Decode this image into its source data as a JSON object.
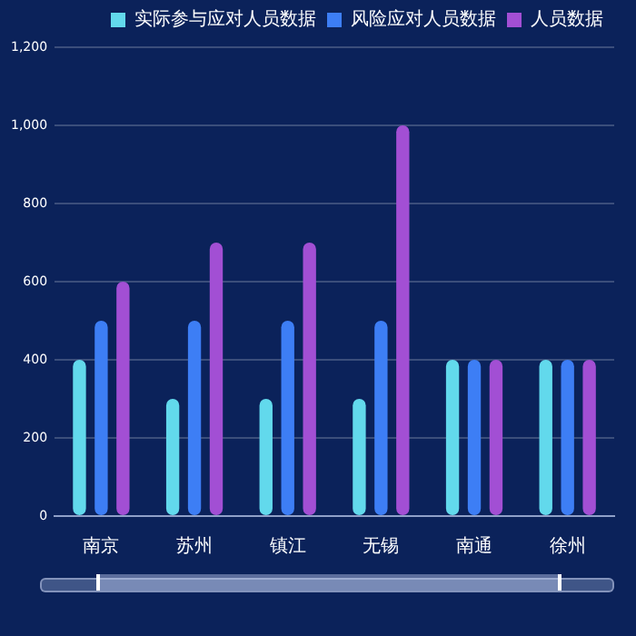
{
  "chart_data": {
    "type": "bar",
    "categories": [
      "南京",
      "苏州",
      "镇江",
      "无锡",
      "南通",
      "徐州"
    ],
    "series": [
      {
        "name": "实际参与应对人员数据",
        "color": "#62d9ec",
        "values": [
          400,
          300,
          300,
          300,
          400,
          400
        ]
      },
      {
        "name": "风险应对人员数据",
        "color": "#3d7ef5",
        "values": [
          500,
          500,
          500,
          500,
          400,
          400
        ]
      },
      {
        "name": "人员数据",
        "color": "#a24fd4",
        "values": [
          600,
          700,
          700,
          1000,
          400,
          400
        ]
      }
    ],
    "ylim": [
      0,
      1200
    ],
    "yticks": [
      0,
      {
        "value": 200,
        "label": "200"
      },
      {
        "value": 400,
        "label": "400"
      },
      {
        "value": 600,
        "label": "600"
      },
      {
        "value": 800,
        "label": "800"
      },
      {
        "value": 1000,
        "label": "1,000"
      },
      {
        "value": 1200,
        "label": "1,200"
      }
    ],
    "grid": "y",
    "legend": "top right"
  }
}
